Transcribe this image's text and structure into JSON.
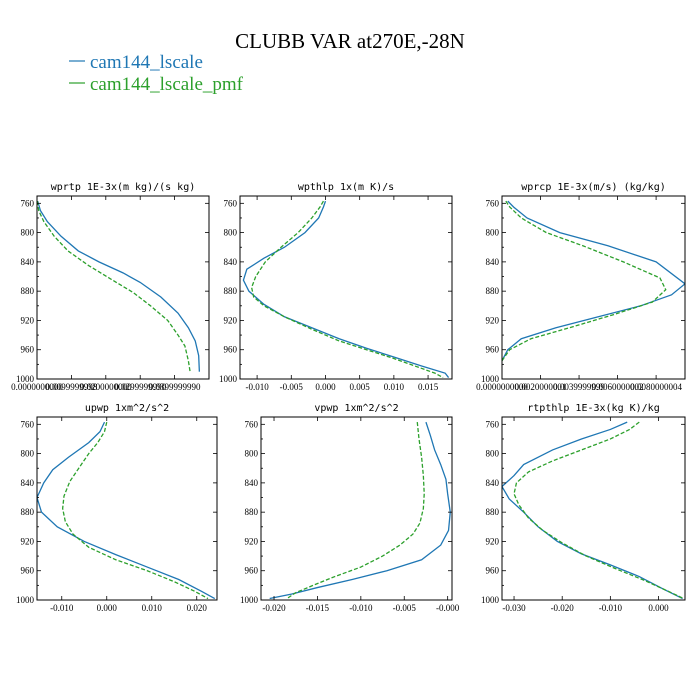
{
  "figure": {
    "title": "CLUBB VAR at270E,-28N",
    "legend": [
      {
        "label": "cam144_lscale",
        "color": "#1f77b4",
        "dash": "solid"
      },
      {
        "label": "cam144_lscale_pmf",
        "color": "#2ca02c",
        "dash": "dashed"
      }
    ]
  },
  "chart_data": [
    {
      "type": "line",
      "title": "wprtp  1E-3x(m kg)/(s kg)",
      "xlim": [
        0,
        0.05
      ],
      "ylim": [
        1000,
        750
      ],
      "yticks": [
        760,
        800,
        840,
        880,
        920,
        960,
        1000
      ],
      "xticks": [
        0,
        0.01,
        0.02,
        0.03,
        0.04
      ],
      "xticklabels": [
        "0.0000000000",
        "0.0099999998",
        "0.0200000000",
        "0.0299999990",
        "0.0399999990"
      ],
      "series": [
        {
          "name": "cam144_lscale",
          "color": "#1f77b4",
          "dash": "solid",
          "x": [
            0.0002,
            0.001,
            0.003,
            0.007,
            0.012,
            0.018,
            0.025,
            0.03,
            0.036,
            0.041,
            0.044,
            0.046,
            0.047,
            0.0472
          ],
          "y": [
            757,
            770,
            785,
            805,
            825,
            840,
            855,
            868,
            888,
            910,
            930,
            948,
            968,
            990
          ]
        },
        {
          "name": "cam144_lscale_pmf",
          "color": "#2ca02c",
          "dash": "dashed",
          "x": [
            0.0001,
            0.0005,
            0.002,
            0.005,
            0.009,
            0.015,
            0.022,
            0.028,
            0.033,
            0.038,
            0.041,
            0.043,
            0.044,
            0.0445
          ],
          "y": [
            757,
            770,
            785,
            805,
            825,
            845,
            865,
            882,
            900,
            920,
            940,
            955,
            975,
            990
          ]
        }
      ]
    },
    {
      "type": "line",
      "title": "wpthlp  1x(m K)/s",
      "xlim": [
        -0.0125,
        0.0185
      ],
      "ylim": [
        1000,
        750
      ],
      "yticks": [
        760,
        800,
        840,
        880,
        920,
        960,
        1000
      ],
      "xticks": [
        -0.01,
        -0.005,
        0,
        0.005,
        0.01,
        0.015
      ],
      "xticklabels": [
        "-0.010",
        "-0.005",
        "0.000",
        "0.005",
        "0.010",
        "0.015"
      ],
      "series": [
        {
          "name": "cam144_lscale",
          "color": "#1f77b4",
          "dash": "solid",
          "x": [
            0.0,
            -0.0003,
            -0.001,
            -0.003,
            -0.006,
            -0.009,
            -0.0115,
            -0.012,
            -0.0112,
            -0.009,
            -0.006,
            -0.002,
            0.002,
            0.006,
            0.01,
            0.014,
            0.0175,
            0.018
          ],
          "y": [
            757,
            765,
            780,
            800,
            820,
            835,
            850,
            865,
            880,
            898,
            915,
            930,
            945,
            958,
            970,
            982,
            992,
            998
          ]
        },
        {
          "name": "cam144_lscale_pmf",
          "color": "#2ca02c",
          "dash": "dashed",
          "x": [
            -0.0003,
            -0.0008,
            -0.002,
            -0.004,
            -0.0065,
            -0.0088,
            -0.0102,
            -0.0108,
            -0.0105,
            -0.009,
            -0.006,
            -0.002,
            0.002,
            0.006,
            0.01,
            0.013,
            0.016,
            0.0172
          ],
          "y": [
            757,
            765,
            780,
            800,
            820,
            840,
            860,
            875,
            888,
            900,
            915,
            932,
            948,
            960,
            972,
            982,
            992,
            998
          ]
        }
      ]
    },
    {
      "type": "line",
      "title": "wprcp  1E-3x(m/s) (kg/kg)",
      "xlim": [
        0,
        0.0095
      ],
      "ylim": [
        1000,
        750
      ],
      "yticks": [
        760,
        800,
        840,
        880,
        920,
        960,
        1000
      ],
      "xticks": [
        0,
        0.002,
        0.004,
        0.006,
        0.008
      ],
      "xticklabels": [
        "0.0000000000",
        "0.0020000001",
        "0.0039999999",
        "0.0060000002",
        "0.0080000004"
      ],
      "series": [
        {
          "name": "cam144_lscale",
          "color": "#1f77b4",
          "dash": "solid",
          "x": [
            0.0003,
            0.0006,
            0.0013,
            0.003,
            0.0055,
            0.008,
            0.0095,
            0.0088,
            0.0072,
            0.005,
            0.0028,
            0.001,
            0.0003,
            0.0
          ],
          "y": [
            757,
            765,
            780,
            800,
            818,
            840,
            870,
            885,
            900,
            915,
            930,
            945,
            960,
            975
          ]
        },
        {
          "name": "cam144_lscale_pmf",
          "color": "#2ca02c",
          "dash": "dashed",
          "x": [
            0.0002,
            0.0004,
            0.001,
            0.0023,
            0.0042,
            0.0063,
            0.0082,
            0.0085,
            0.0078,
            0.0058,
            0.0035,
            0.0015,
            0.0004,
            0.0
          ],
          "y": [
            757,
            765,
            780,
            800,
            818,
            840,
            862,
            878,
            895,
            912,
            930,
            945,
            960,
            975
          ]
        }
      ]
    },
    {
      "type": "line",
      "title": "upwp  1xm^2/s^2",
      "xlim": [
        -0.0155,
        0.0245
      ],
      "ylim": [
        1000,
        750
      ],
      "yticks": [
        760,
        800,
        840,
        880,
        920,
        960,
        1000
      ],
      "xticks": [
        -0.01,
        0,
        0.01,
        0.02
      ],
      "xticklabels": [
        "-0.010",
        "0.000",
        "0.010",
        "0.020"
      ],
      "series": [
        {
          "name": "cam144_lscale",
          "color": "#1f77b4",
          "dash": "solid",
          "x": [
            -0.0005,
            -0.0015,
            -0.004,
            -0.0085,
            -0.012,
            -0.014,
            -0.0155,
            -0.0145,
            -0.011,
            -0.005,
            0.002,
            0.009,
            0.016,
            0.021,
            0.024
          ],
          "y": [
            757,
            770,
            785,
            805,
            822,
            840,
            860,
            880,
            900,
            920,
            938,
            955,
            972,
            988,
            998
          ]
        },
        {
          "name": "cam144_lscale_pmf",
          "color": "#2ca02c",
          "dash": "dashed",
          "x": [
            0.0,
            -0.0005,
            -0.002,
            -0.004,
            -0.006,
            -0.0082,
            -0.0095,
            -0.0098,
            -0.0092,
            -0.0075,
            -0.004,
            0.002,
            0.009,
            0.015,
            0.0195,
            0.0225
          ],
          "y": [
            757,
            770,
            785,
            800,
            818,
            838,
            858,
            875,
            893,
            910,
            928,
            945,
            960,
            975,
            988,
            998
          ]
        }
      ]
    },
    {
      "type": "line",
      "title": "vpwp  1xm^2/s^2",
      "xlim": [
        -0.0215,
        0.0005
      ],
      "ylim": [
        1000,
        750
      ],
      "yticks": [
        760,
        800,
        840,
        880,
        920,
        960,
        1000
      ],
      "xticks": [
        -0.02,
        -0.015,
        -0.01,
        -0.005,
        0
      ],
      "xticklabels": [
        "-0.020",
        "-0.015",
        "-0.010",
        "-0.005",
        "-0.000"
      ],
      "series": [
        {
          "name": "cam144_lscale",
          "color": "#1f77b4",
          "dash": "solid",
          "x": [
            -0.0025,
            -0.002,
            -0.0015,
            -0.0008,
            -0.0002,
            0.0,
            0.0003,
            0.0001,
            -0.0008,
            -0.003,
            -0.007,
            -0.011,
            -0.015,
            -0.018,
            -0.0205
          ],
          "y": [
            757,
            775,
            795,
            815,
            835,
            855,
            880,
            905,
            925,
            945,
            960,
            972,
            983,
            992,
            998
          ]
        },
        {
          "name": "cam144_lscale_pmf",
          "color": "#2ca02c",
          "dash": "dashed",
          "x": [
            -0.0035,
            -0.0033,
            -0.003,
            -0.0028,
            -0.0027,
            -0.0028,
            -0.0032,
            -0.004,
            -0.0055,
            -0.0075,
            -0.01,
            -0.013,
            -0.0155,
            -0.0175,
            -0.0185
          ],
          "y": [
            757,
            780,
            805,
            830,
            855,
            875,
            895,
            910,
            925,
            940,
            955,
            968,
            980,
            990,
            998
          ]
        }
      ]
    },
    {
      "type": "line",
      "title": "rtpthlp  1E-3x(kg K)/kg",
      "xlim": [
        -0.0325,
        0.0055
      ],
      "ylim": [
        1000,
        750
      ],
      "yticks": [
        760,
        800,
        840,
        880,
        920,
        960,
        1000
      ],
      "xticks": [
        -0.03,
        -0.02,
        -0.01,
        0
      ],
      "xticklabels": [
        "-0.030",
        "-0.020",
        "-0.010",
        "0.000"
      ],
      "series": [
        {
          "name": "cam144_lscale",
          "color": "#1f77b4",
          "dash": "solid",
          "x": [
            -0.0065,
            -0.01,
            -0.016,
            -0.022,
            -0.028,
            -0.03,
            -0.0325,
            -0.031,
            -0.028,
            -0.025,
            -0.021,
            -0.016,
            -0.01,
            -0.004,
            0.001,
            0.005
          ],
          "y": [
            757,
            767,
            780,
            795,
            815,
            830,
            845,
            862,
            880,
            900,
            920,
            937,
            952,
            968,
            985,
            998
          ]
        },
        {
          "name": "cam144_lscale_pmf",
          "color": "#2ca02c",
          "dash": "dashed",
          "x": [
            -0.004,
            -0.006,
            -0.01,
            -0.016,
            -0.022,
            -0.027,
            -0.0295,
            -0.03,
            -0.029,
            -0.027,
            -0.024,
            -0.02,
            -0.015,
            -0.009,
            -0.003,
            0.002,
            0.0052
          ],
          "y": [
            757,
            767,
            780,
            795,
            810,
            825,
            840,
            855,
            870,
            888,
            905,
            922,
            940,
            957,
            973,
            988,
            998
          ]
        }
      ]
    }
  ]
}
